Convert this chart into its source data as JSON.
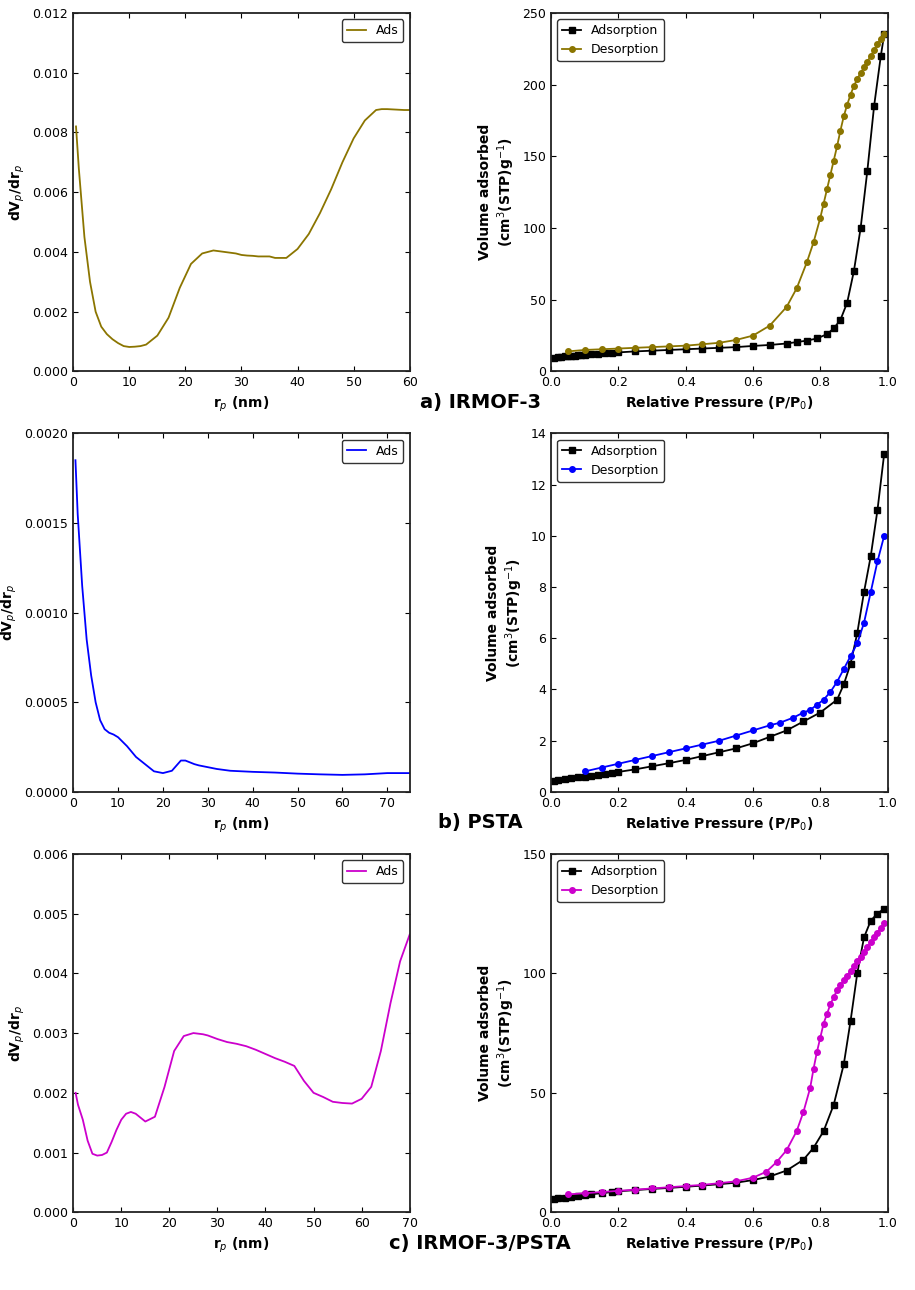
{
  "panels": [
    {
      "label": "a) IRMOF-3",
      "left": {
        "color": "#8B7500",
        "legend_label": "Ads",
        "xlabel": "r$_p$ (nm)",
        "ylabel": "dV$_p$/dr$_p$",
        "xlim": [
          0,
          60
        ],
        "ylim": [
          0,
          0.012
        ],
        "yticks": [
          0,
          0.002,
          0.004,
          0.006,
          0.008,
          0.01,
          0.012
        ],
        "xticks": [
          0,
          10,
          20,
          30,
          40,
          50,
          60
        ],
        "x": [
          0.5,
          1,
          2,
          3,
          4,
          5,
          6,
          7,
          8,
          9,
          10,
          11,
          12,
          13,
          15,
          17,
          19,
          21,
          23,
          25,
          27,
          29,
          30,
          31,
          32,
          33,
          34,
          35,
          36,
          37,
          38,
          40,
          42,
          44,
          46,
          48,
          50,
          52,
          54,
          55,
          56,
          57,
          58,
          59,
          60
        ],
        "y": [
          0.0082,
          0.0068,
          0.0045,
          0.003,
          0.002,
          0.0015,
          0.00125,
          0.00108,
          0.00095,
          0.00085,
          0.00082,
          0.00083,
          0.00085,
          0.0009,
          0.0012,
          0.0018,
          0.0028,
          0.0036,
          0.00395,
          0.00405,
          0.004,
          0.00395,
          0.0039,
          0.00388,
          0.00387,
          0.00385,
          0.00385,
          0.00385,
          0.0038,
          0.0038,
          0.0038,
          0.0041,
          0.0046,
          0.0053,
          0.0061,
          0.007,
          0.0078,
          0.0084,
          0.00875,
          0.00878,
          0.00878,
          0.00877,
          0.00876,
          0.00875,
          0.00875
        ]
      },
      "right": {
        "ads_color": "#000000",
        "des_color": "#8B7500",
        "xlabel": "Relative Pressure (P/P$_0$)",
        "ylabel": "Volume adsorbed\n(cm$^3$(STP)g$^{-1}$)",
        "xlim": [
          0,
          1.0
        ],
        "ylim": [
          0,
          250
        ],
        "yticks": [
          0,
          50,
          100,
          150,
          200,
          250
        ],
        "xticks": [
          0.0,
          0.2,
          0.4,
          0.6,
          0.8,
          1.0
        ],
        "ads_x": [
          0.01,
          0.02,
          0.03,
          0.04,
          0.05,
          0.06,
          0.07,
          0.08,
          0.09,
          0.1,
          0.12,
          0.14,
          0.16,
          0.18,
          0.2,
          0.25,
          0.3,
          0.35,
          0.4,
          0.45,
          0.5,
          0.55,
          0.6,
          0.65,
          0.7,
          0.73,
          0.76,
          0.79,
          0.82,
          0.84,
          0.86,
          0.88,
          0.9,
          0.92,
          0.94,
          0.96,
          0.98,
          0.99
        ],
        "ads_y": [
          9.5,
          10,
          10.3,
          10.5,
          10.7,
          10.8,
          11.0,
          11.2,
          11.4,
          11.6,
          12.0,
          12.4,
          12.7,
          13.0,
          13.3,
          14.0,
          14.5,
          15.0,
          15.5,
          16.0,
          16.5,
          17.0,
          17.8,
          18.5,
          19.5,
          20.5,
          21.5,
          23.0,
          26.0,
          30.0,
          36.0,
          48.0,
          70.0,
          100.0,
          140.0,
          185.0,
          220.0,
          235.0
        ],
        "des_x": [
          0.99,
          0.98,
          0.97,
          0.96,
          0.95,
          0.94,
          0.93,
          0.92,
          0.91,
          0.9,
          0.89,
          0.88,
          0.87,
          0.86,
          0.85,
          0.84,
          0.83,
          0.82,
          0.81,
          0.8,
          0.78,
          0.76,
          0.73,
          0.7,
          0.65,
          0.6,
          0.55,
          0.5,
          0.45,
          0.4,
          0.35,
          0.3,
          0.25,
          0.2,
          0.15,
          0.1,
          0.05
        ],
        "des_y": [
          235,
          232,
          228,
          224,
          220,
          216,
          212,
          208,
          204,
          199,
          193,
          186,
          178,
          168,
          157,
          147,
          137,
          127,
          117,
          107,
          90,
          76,
          58,
          45,
          32,
          25,
          22,
          20,
          19,
          18,
          17.5,
          17,
          16.5,
          16,
          15.5,
          15,
          14
        ]
      }
    },
    {
      "label": "b) PSTA",
      "left": {
        "color": "#0000FF",
        "legend_label": "Ads",
        "xlabel": "r$_p$ (nm)",
        "ylabel": "dV$_p$/dr$_p$",
        "xlim": [
          0,
          75
        ],
        "ylim": [
          0,
          0.002
        ],
        "yticks": [
          0.0,
          0.0005,
          0.001,
          0.0015,
          0.002
        ],
        "xticks": [
          0,
          10,
          20,
          30,
          40,
          50,
          60,
          70
        ],
        "x": [
          0.5,
          1,
          2,
          3,
          4,
          5,
          6,
          7,
          8,
          9,
          10,
          12,
          14,
          16,
          18,
          20,
          22,
          24,
          25,
          26,
          27,
          28,
          30,
          32,
          35,
          40,
          45,
          50,
          55,
          60,
          65,
          70,
          75
        ],
        "y": [
          0.00185,
          0.00155,
          0.00115,
          0.00085,
          0.00065,
          0.0005,
          0.0004,
          0.00035,
          0.00033,
          0.00032,
          0.000305,
          0.000255,
          0.000195,
          0.000155,
          0.000115,
          0.000105,
          0.000118,
          0.000175,
          0.000175,
          0.000165,
          0.000155,
          0.000148,
          0.000138,
          0.000128,
          0.000118,
          0.000112,
          0.000108,
          0.000102,
          9.8e-05,
          9.5e-05,
          9.8e-05,
          0.000105,
          0.000105
        ]
      },
      "right": {
        "ads_color": "#000000",
        "des_color": "#0000FF",
        "xlabel": "Relative Pressure (P/P$_0$)",
        "ylabel": "Volume adsorbed\n(cm$^3$(STP)g$^{-1}$)",
        "xlim": [
          0,
          1.0
        ],
        "ylim": [
          0,
          14
        ],
        "yticks": [
          0,
          2,
          4,
          6,
          8,
          10,
          12,
          14
        ],
        "xticks": [
          0.0,
          0.2,
          0.4,
          0.6,
          0.8,
          1.0
        ],
        "ads_x": [
          0.01,
          0.02,
          0.04,
          0.06,
          0.08,
          0.1,
          0.12,
          0.14,
          0.16,
          0.18,
          0.2,
          0.25,
          0.3,
          0.35,
          0.4,
          0.45,
          0.5,
          0.55,
          0.6,
          0.65,
          0.7,
          0.75,
          0.8,
          0.85,
          0.87,
          0.89,
          0.91,
          0.93,
          0.95,
          0.97,
          0.99
        ],
        "ads_y": [
          0.42,
          0.45,
          0.5,
          0.53,
          0.57,
          0.6,
          0.63,
          0.67,
          0.7,
          0.74,
          0.78,
          0.88,
          1.0,
          1.12,
          1.25,
          1.4,
          1.55,
          1.7,
          1.9,
          2.15,
          2.4,
          2.75,
          3.1,
          3.6,
          4.2,
          5.0,
          6.2,
          7.8,
          9.2,
          11.0,
          13.2
        ],
        "des_x": [
          0.99,
          0.97,
          0.95,
          0.93,
          0.91,
          0.89,
          0.87,
          0.85,
          0.83,
          0.81,
          0.79,
          0.77,
          0.75,
          0.72,
          0.68,
          0.65,
          0.6,
          0.55,
          0.5,
          0.45,
          0.4,
          0.35,
          0.3,
          0.25,
          0.2,
          0.15,
          0.1
        ],
        "des_y": [
          10.0,
          9.0,
          7.8,
          6.6,
          5.8,
          5.3,
          4.8,
          4.3,
          3.9,
          3.6,
          3.4,
          3.2,
          3.1,
          2.9,
          2.7,
          2.6,
          2.4,
          2.2,
          2.0,
          1.85,
          1.7,
          1.55,
          1.4,
          1.25,
          1.1,
          0.95,
          0.8
        ]
      }
    },
    {
      "label": "c) IRMOF-3/PSTA",
      "left": {
        "color": "#CC00CC",
        "legend_label": "Ads",
        "xlabel": "r$_p$ (nm)",
        "ylabel": "dV$_p$/dr$_p$",
        "xlim": [
          0,
          70
        ],
        "ylim": [
          0,
          0.006
        ],
        "yticks": [
          0.0,
          0.001,
          0.002,
          0.003,
          0.004,
          0.005,
          0.006
        ],
        "xticks": [
          0,
          10,
          20,
          30,
          40,
          50,
          60,
          70
        ],
        "x": [
          0.5,
          1,
          2,
          3,
          4,
          5,
          6,
          7,
          8,
          9,
          10,
          11,
          12,
          13,
          15,
          17,
          19,
          21,
          23,
          25,
          27,
          28,
          30,
          32,
          34,
          36,
          38,
          40,
          42,
          44,
          46,
          48,
          50,
          52,
          54,
          56,
          58,
          60,
          62,
          64,
          66,
          68,
          70
        ],
        "y": [
          0.002,
          0.0018,
          0.00155,
          0.0012,
          0.00098,
          0.00095,
          0.00096,
          0.001,
          0.00118,
          0.00138,
          0.00155,
          0.00165,
          0.00168,
          0.00165,
          0.00152,
          0.0016,
          0.0021,
          0.0027,
          0.00295,
          0.003,
          0.00298,
          0.00296,
          0.0029,
          0.00285,
          0.00282,
          0.00278,
          0.00272,
          0.00265,
          0.00258,
          0.00252,
          0.00245,
          0.0022,
          0.002,
          0.00193,
          0.00185,
          0.00183,
          0.00182,
          0.0019,
          0.0021,
          0.0027,
          0.0035,
          0.0042,
          0.00465
        ]
      },
      "right": {
        "ads_color": "#000000",
        "des_color": "#CC00CC",
        "xlabel": "Relative Pressure (P/P$_0$)",
        "ylabel": "Volume adsorbed\n(cm$^3$(STP)g$^{-1}$)",
        "xlim": [
          0,
          1.0
        ],
        "ylim": [
          0,
          150
        ],
        "yticks": [
          0,
          50,
          100,
          150
        ],
        "xticks": [
          0.0,
          0.2,
          0.4,
          0.6,
          0.8,
          1.0
        ],
        "ads_x": [
          0.01,
          0.02,
          0.04,
          0.06,
          0.08,
          0.1,
          0.12,
          0.15,
          0.18,
          0.2,
          0.25,
          0.3,
          0.35,
          0.4,
          0.45,
          0.5,
          0.55,
          0.6,
          0.65,
          0.7,
          0.75,
          0.78,
          0.81,
          0.84,
          0.87,
          0.89,
          0.91,
          0.93,
          0.95,
          0.97,
          0.99
        ],
        "ads_y": [
          5.5,
          5.8,
          6.2,
          6.5,
          7.0,
          7.3,
          7.6,
          8.0,
          8.5,
          8.8,
          9.3,
          9.8,
          10.2,
          10.7,
          11.2,
          11.8,
          12.4,
          13.5,
          15.0,
          17.5,
          22.0,
          27.0,
          34.0,
          45.0,
          62.0,
          80.0,
          100.0,
          115.0,
          122.0,
          125.0,
          127.0
        ],
        "des_x": [
          0.99,
          0.98,
          0.97,
          0.96,
          0.95,
          0.94,
          0.93,
          0.92,
          0.91,
          0.9,
          0.89,
          0.88,
          0.87,
          0.86,
          0.85,
          0.84,
          0.83,
          0.82,
          0.81,
          0.8,
          0.79,
          0.78,
          0.77,
          0.75,
          0.73,
          0.7,
          0.67,
          0.64,
          0.6,
          0.55,
          0.5,
          0.45,
          0.4,
          0.35,
          0.3,
          0.25,
          0.2,
          0.15,
          0.1,
          0.05
        ],
        "des_y": [
          121,
          119,
          117,
          115,
          113,
          111,
          109,
          107,
          105,
          103,
          101,
          99,
          97,
          95,
          93,
          90,
          87,
          83,
          79,
          73,
          67,
          60,
          52,
          42,
          34,
          26,
          21,
          17,
          14.5,
          13.0,
          12.2,
          11.5,
          11.0,
          10.5,
          10.0,
          9.5,
          9.0,
          8.5,
          8.0,
          7.5
        ]
      }
    }
  ],
  "background_color": "#ffffff",
  "spine_color": "#222222",
  "tick_labelsize": 9,
  "axis_labelsize": 10,
  "legend_fontsize": 9,
  "label_fontsize": 14
}
